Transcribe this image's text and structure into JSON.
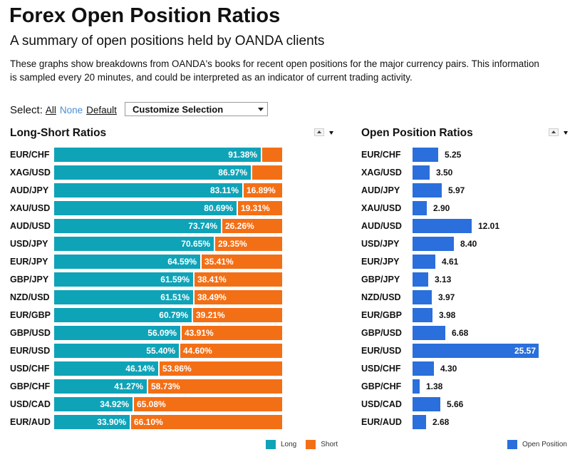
{
  "header": {
    "title": "Forex Open Position Ratios",
    "subtitle": "A summary of open positions held by OANDA clients",
    "description_line1": "These graphs show breakdowns from OANDA's books for recent open positions for the major currency pairs. This information",
    "description_line2": "is sampled every 20 minutes, and could be interpreted as an indicator of current trading activity."
  },
  "select": {
    "label": "Select:",
    "all": "All",
    "none": "None",
    "default": "Default",
    "dropdown_value": "Customize Selection"
  },
  "colors": {
    "long": "#0fa3b8",
    "short": "#f36f16",
    "open": "#2a6fdb"
  },
  "chart_data": [
    {
      "type": "bar",
      "title": "Long-Short Ratios",
      "orientation": "horizontal",
      "stacked": true,
      "categories": [
        "EUR/CHF",
        "XAG/USD",
        "AUD/JPY",
        "XAU/USD",
        "AUD/USD",
        "USD/JPY",
        "EUR/JPY",
        "GBP/JPY",
        "NZD/USD",
        "EUR/GBP",
        "GBP/USD",
        "EUR/USD",
        "USD/CHF",
        "GBP/CHF",
        "USD/CAD",
        "EUR/AUD"
      ],
      "series": [
        {
          "name": "Long",
          "values": [
            91.38,
            86.97,
            83.11,
            80.69,
            73.74,
            70.65,
            64.59,
            61.59,
            61.51,
            60.79,
            56.09,
            55.4,
            46.14,
            41.27,
            34.92,
            33.9
          ]
        },
        {
          "name": "Short",
          "values": [
            8.62,
            13.03,
            16.89,
            19.31,
            26.26,
            29.35,
            35.41,
            38.41,
            38.49,
            39.21,
            43.91,
            44.6,
            53.86,
            58.73,
            65.08,
            66.1
          ]
        }
      ],
      "labels": {
        "long": [
          "91.38%",
          "86.97%",
          "83.11%",
          "80.69%",
          "73.74%",
          "70.65%",
          "64.59%",
          "61.59%",
          "61.51%",
          "60.79%",
          "56.09%",
          "55.40%",
          "46.14%",
          "41.27%",
          "34.92%",
          "33.90%"
        ],
        "short": [
          "",
          "",
          "16.89%",
          "19.31%",
          "26.26%",
          "29.35%",
          "35.41%",
          "38.41%",
          "38.49%",
          "39.21%",
          "43.91%",
          "44.60%",
          "53.86%",
          "58.73%",
          "65.08%",
          "66.10%"
        ]
      },
      "xlim": [
        0,
        100
      ],
      "legend": "bottom-right"
    },
    {
      "type": "bar",
      "title": "Open Position Ratios",
      "orientation": "horizontal",
      "categories": [
        "EUR/CHF",
        "XAG/USD",
        "AUD/JPY",
        "XAU/USD",
        "AUD/USD",
        "USD/JPY",
        "EUR/JPY",
        "GBP/JPY",
        "NZD/USD",
        "EUR/GBP",
        "GBP/USD",
        "EUR/USD",
        "USD/CHF",
        "GBP/CHF",
        "USD/CAD",
        "EUR/AUD"
      ],
      "series": [
        {
          "name": "Open Position",
          "values": [
            5.25,
            3.5,
            5.97,
            2.9,
            12.01,
            8.4,
            4.61,
            3.13,
            3.97,
            3.98,
            6.68,
            25.57,
            4.3,
            1.38,
            5.66,
            2.68
          ]
        }
      ],
      "labels": [
        "5.25",
        "3.50",
        "5.97",
        "2.90",
        "12.01",
        "8.40",
        "4.61",
        "3.13",
        "3.97",
        "3.98",
        "6.68",
        "25.57",
        "4.30",
        "1.38",
        "5.66",
        "2.68"
      ],
      "xlim": [
        0,
        25.57
      ],
      "legend": "bottom-right"
    }
  ]
}
